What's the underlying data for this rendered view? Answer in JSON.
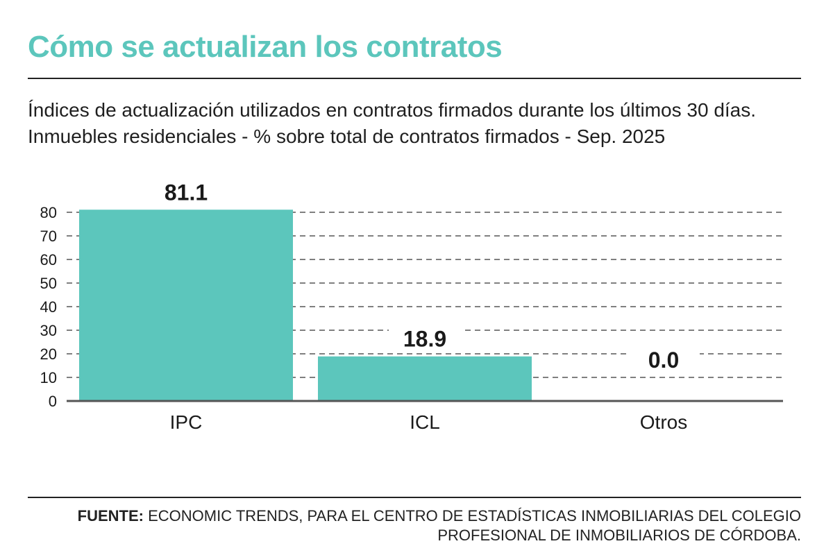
{
  "title": "Cómo se actualizan los contratos",
  "subtitle_lines": [
    "Índices de actualización utilizados en contratos firmados durante los últimos 30 días.",
    "Inmuebles residenciales - % sobre total de contratos firmados - Sep. 2025"
  ],
  "source": {
    "label": "FUENTE:",
    "line1": "ECONOMIC TRENDS, PARA EL CENTRO DE ESTADÍSTICAS INMOBILIARIAS DEL COLEGIO",
    "line2": "PROFESIONAL DE INMOBILIARIOS DE CÓRDOBA."
  },
  "colors": {
    "title": "#5cc6bc",
    "bar": "#5cc6bc",
    "grid": "#555555",
    "axis": "#555555",
    "text": "#1a1a1a"
  },
  "chart_data": {
    "type": "bar",
    "categories": [
      "IPC",
      "ICL",
      "Otros"
    ],
    "values": [
      81.1,
      18.9,
      0.0
    ],
    "data_labels": [
      "81.1",
      "18.9",
      "0.0"
    ],
    "yticks": [
      0,
      10,
      20,
      30,
      40,
      50,
      60,
      70,
      80
    ],
    "ylim": [
      0,
      80
    ],
    "grid": true,
    "grid_style": "dashed",
    "legend": "none"
  }
}
